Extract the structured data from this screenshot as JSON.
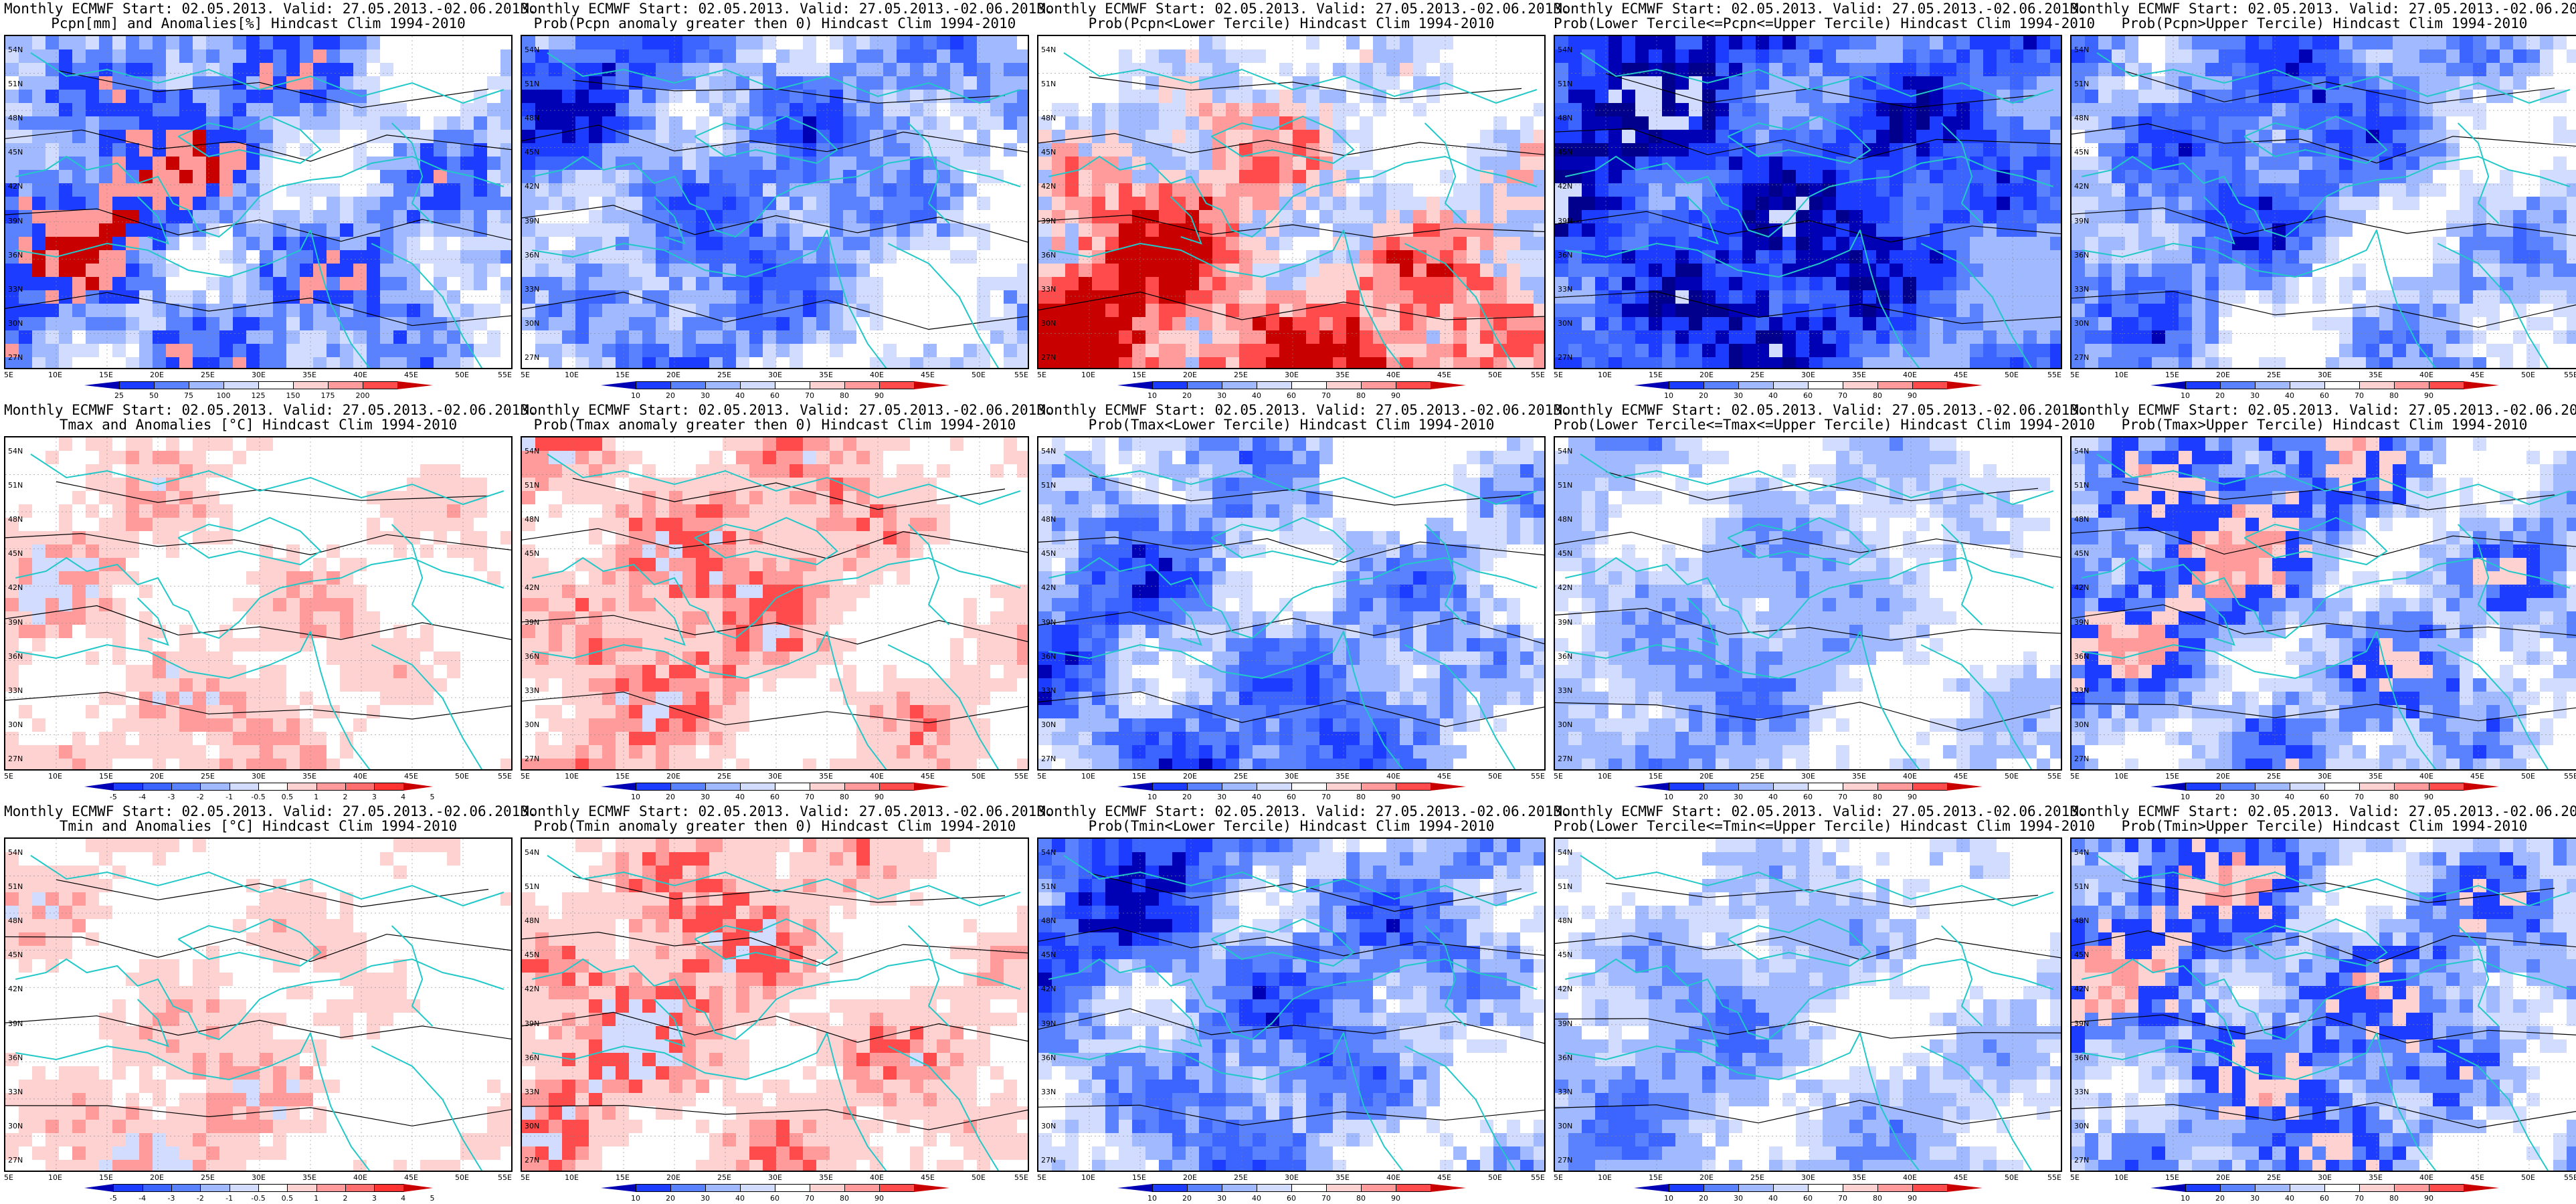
{
  "colors": {
    "coast": "#22c8c8",
    "contour": "#000000",
    "frame": "#000000"
  },
  "lat_labels": [
    "54N",
    "51N",
    "48N",
    "45N",
    "42N",
    "39N",
    "36N",
    "33N",
    "30N",
    "27N"
  ],
  "lon_labels": [
    "5E",
    "10E",
    "15E",
    "20E",
    "25E",
    "30E",
    "35E",
    "40E",
    "45E",
    "50E",
    "55E"
  ],
  "colorbars": {
    "precip_anom": {
      "ticks": [
        "25",
        "50",
        "75",
        "100",
        "125",
        "150",
        "175",
        "200"
      ],
      "colors": [
        "#0000b4",
        "#1c3cff",
        "#5a82ff",
        "#a0b9ff",
        "#d2dcff",
        "#ffffff",
        "#ffd2d2",
        "#ff9b9b",
        "#ff4b4b",
        "#c80000"
      ]
    },
    "prob": {
      "ticks": [
        "10",
        "20",
        "30",
        "40",
        "60",
        "70",
        "80",
        "90"
      ],
      "colors": [
        "#0000b4",
        "#1c3cff",
        "#5a82ff",
        "#a0b9ff",
        "#d2dcff",
        "#ffffff",
        "#ffd2d2",
        "#ff9b9b",
        "#ff4b4b",
        "#c80000"
      ]
    },
    "temp_anom": {
      "ticks": [
        "-5",
        "-4",
        "-3",
        "-2",
        "-1",
        "-0.5",
        "0.5",
        "1",
        "2",
        "3",
        "4",
        "5"
      ],
      "colors": [
        "#0000b4",
        "#1c3cff",
        "#3c64ff",
        "#5a82ff",
        "#a0b9ff",
        "#d2dcff",
        "#ffffff",
        "#ffd2d2",
        "#ff9b9b",
        "#ff6e6e",
        "#ff3232",
        "#c80000"
      ]
    }
  },
  "panels": [
    {
      "line1": "Monthly ECMWF Start: 02.05.2013. Valid: 27.05.2013.-02.06.2013.",
      "line2": "Pcpn[mm] and Anomalies[%] Hindcast Clim 1994-2010",
      "cbar": "precip_anom",
      "scheme": "mixed"
    },
    {
      "line1": "Monthly ECMWF Start: 02.05.2013. Valid: 27.05.2013.-02.06.2013.",
      "line2": "Prob(Pcpn anomaly greater then 0) Hindcast Clim 1994-2010",
      "cbar": "prob",
      "scheme": "blue"
    },
    {
      "line1": "Monthly ECMWF Start: 02.05.2013. Valid: 27.05.2013.-02.06.2013.",
      "line2": "Prob(Pcpn<Lower Tercile) Hindcast Clim 1994-2010",
      "cbar": "prob",
      "scheme": "redsouth"
    },
    {
      "line1": "Monthly ECMWF Start: 02.05.2013. Valid: 27.05.2013.-02.06.2013.",
      "line2": "Prob(Lower Tercile<=Pcpn<=Upper Tercile) Hindcast Clim 1994-2010",
      "cbar": "prob",
      "scheme": "deepblue"
    },
    {
      "line1": "Monthly ECMWF Start: 02.05.2013. Valid: 27.05.2013.-02.06.2013.",
      "line2": "Prob(Pcpn>Upper Tercile) Hindcast Clim 1994-2010",
      "cbar": "prob",
      "scheme": "blue"
    },
    {
      "line1": "Monthly ECMWF Start: 02.05.2013. Valid: 27.05.2013.-02.06.2013.",
      "line2": "Tmax and Anomalies [°C] Hindcast Clim 1994-2010",
      "cbar": "temp_anom",
      "scheme": "lightred"
    },
    {
      "line1": "Monthly ECMWF Start: 02.05.2013. Valid: 27.05.2013.-02.06.2013.",
      "line2": "Prob(Tmax anomaly greater then 0) Hindcast Clim 1994-2010",
      "cbar": "prob",
      "scheme": "red"
    },
    {
      "line1": "Monthly ECMWF Start: 02.05.2013. Valid: 27.05.2013.-02.06.2013.",
      "line2": "Prob(Tmax<Lower Tercile) Hindcast Clim 1994-2010",
      "cbar": "prob",
      "scheme": "blue"
    },
    {
      "line1": "Monthly ECMWF Start: 02.05.2013. Valid: 27.05.2013.-02.06.2013.",
      "line2": "Prob(Lower Tercile<=Tmax<=Upper Tercile) Hindcast Clim 1994-2010",
      "cbar": "prob",
      "scheme": "lightblue"
    },
    {
      "line1": "Monthly ECMWF Start: 02.05.2013. Valid: 27.05.2013.-02.06.2013.",
      "line2": "Prob(Tmax>Upper Tercile) Hindcast Clim 1994-2010",
      "cbar": "prob",
      "scheme": "bluered"
    },
    {
      "line1": "Monthly ECMWF Start: 02.05.2013. Valid: 27.05.2013.-02.06.2013.",
      "line2": "Tmin and Anomalies [°C] Hindcast Clim 1994-2010",
      "cbar": "temp_anom",
      "scheme": "lightred"
    },
    {
      "line1": "Monthly ECMWF Start: 02.05.2013. Valid: 27.05.2013.-02.06.2013.",
      "line2": "Prob(Tmin anomaly greater then 0) Hindcast Clim 1994-2010",
      "cbar": "prob",
      "scheme": "red"
    },
    {
      "line1": "Monthly ECMWF Start: 02.05.2013. Valid: 27.05.2013.-02.06.2013.",
      "line2": "Prob(Tmin<Lower Tercile) Hindcast Clim 1994-2010",
      "cbar": "prob",
      "scheme": "blue"
    },
    {
      "line1": "Monthly ECMWF Start: 02.05.2013. Valid: 27.05.2013.-02.06.2013.",
      "line2": "Prob(Lower Tercile<=Tmin<=Upper Tercile) Hindcast Clim 1994-2010",
      "cbar": "prob",
      "scheme": "lightblue"
    },
    {
      "line1": "Monthly ECMWF Start: 02.05.2013. Valid: 27.05.2013.-02.06.2013.",
      "line2": "Prob(Tmin>Upper Tercile) Hindcast Clim 1994-2010",
      "cbar": "prob",
      "scheme": "bluered"
    }
  ]
}
